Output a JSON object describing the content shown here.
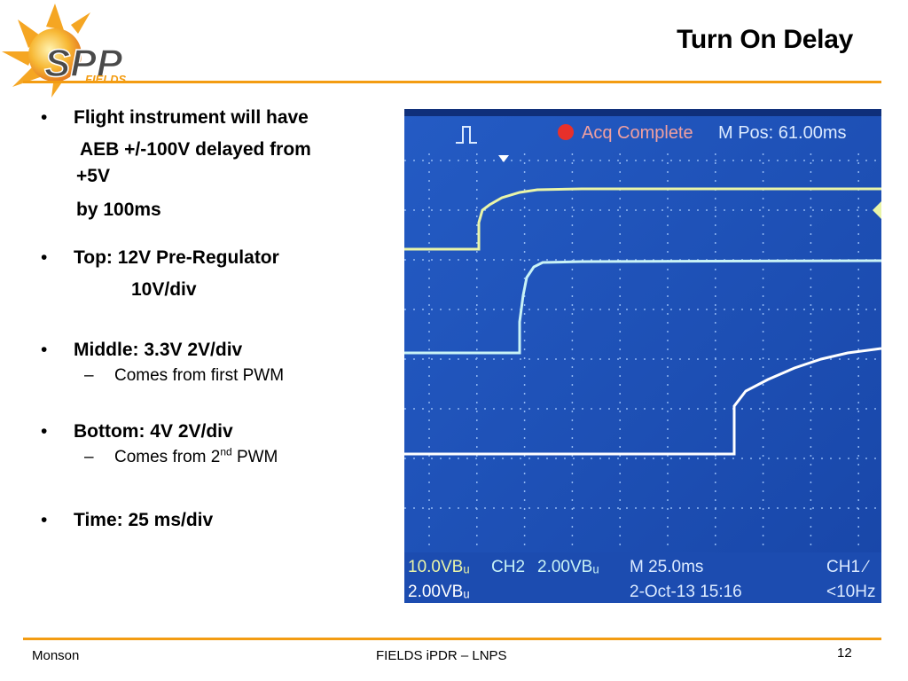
{
  "header": {
    "title": "Turn On Delay",
    "logo": {
      "main_text": "SPP",
      "sub_text": "FIELDS"
    }
  },
  "bullets": [
    {
      "lines": [
        "Flight instrument will have",
        "AEB +/-100V delayed from",
        "+5V",
        "by 100ms"
      ]
    },
    {
      "lines": [
        "Top:  12V Pre-Regulator",
        "10V/div"
      ]
    },
    {
      "lines": [
        "Middle:  3.3V  2V/div"
      ],
      "sub": "Comes from first PWM"
    },
    {
      "lines": [
        "Bottom:  4V  2V/div"
      ],
      "sub_prefix": "Comes from 2",
      "sub_sup": "nd",
      "sub_suffix": " PWM"
    },
    {
      "lines": [
        "Time:  25 ms/div"
      ]
    }
  ],
  "scope": {
    "status": "Acq Complete",
    "mpos": "M Pos: 61.00ms",
    "ch1_scale": "10.0VBᵤ",
    "ch2_label": "CH2",
    "ch2_scale": "2.00VBᵤ",
    "ch3_scale": "2.00VBᵤ",
    "timebase": "M 25.0ms",
    "date": "2-Oct-13 15:16",
    "trigger": "CH1 ∕",
    "freq": "<10Hz",
    "colors": {
      "screen": "#1a4fb8",
      "trace1": "#eaf5a8",
      "trace2": "#c9f3f6",
      "trace3": "#ffffff",
      "text": "#dbeaff"
    }
  },
  "footer": {
    "left": "Monson",
    "center": "FIELDS iPDR – LNPS",
    "page": "12"
  },
  "colors": {
    "rule": "#f39c12"
  }
}
